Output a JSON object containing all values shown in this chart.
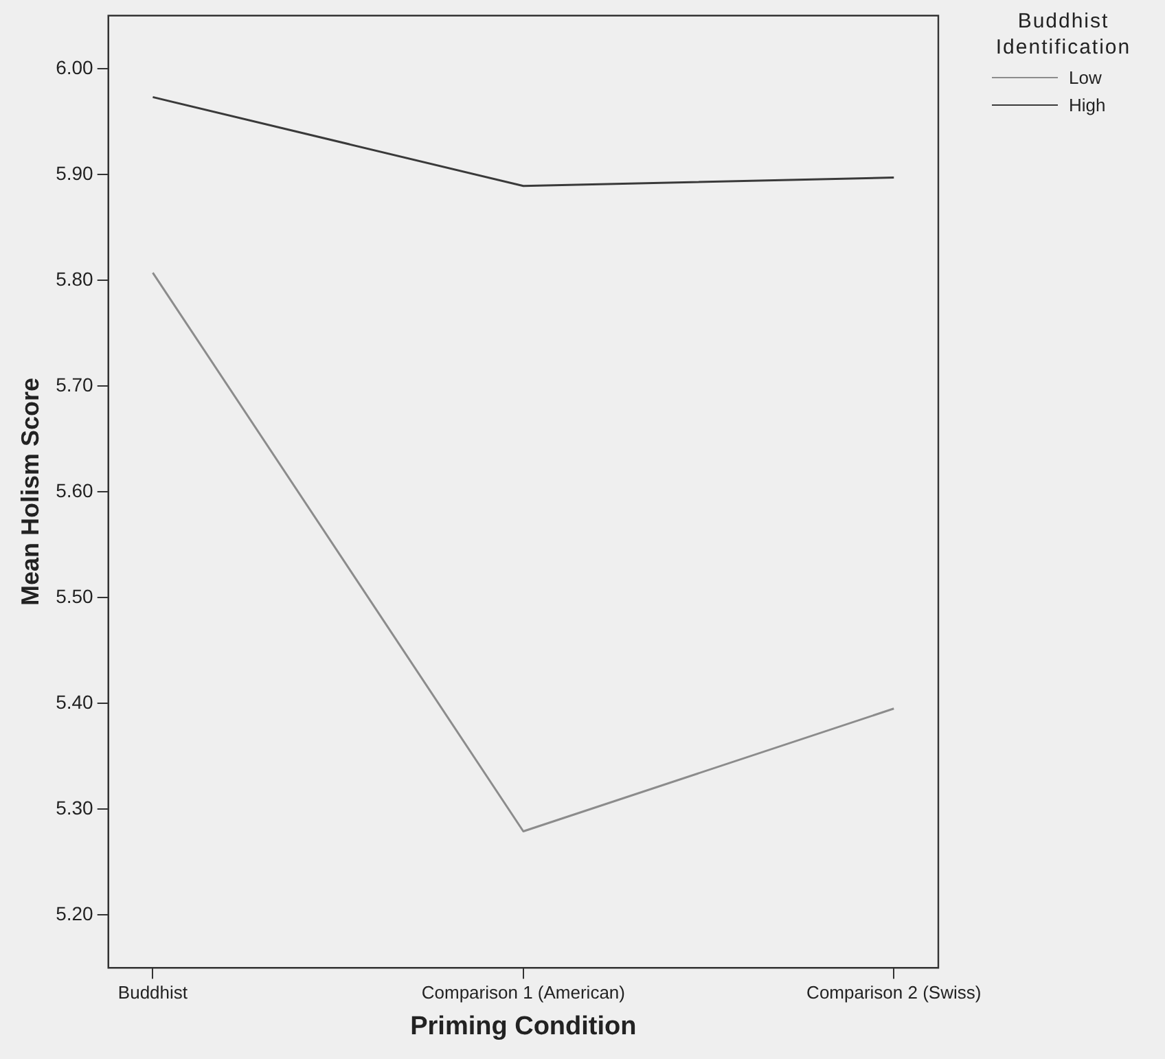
{
  "chart_data": {
    "type": "line",
    "xlabel": "Priming Condition",
    "ylabel": "Mean Holism Score",
    "legend_title": "Buddhist Identification",
    "categories": [
      "Buddhist",
      "Comparison 1 (American)",
      "Comparison 2 (Swiss)"
    ],
    "series": [
      {
        "name": "Low",
        "color": "#8c8c8c",
        "values": [
          5.807,
          5.279,
          5.395
        ]
      },
      {
        "name": "High",
        "color": "#3a3a3a",
        "values": [
          5.973,
          5.889,
          5.897
        ]
      }
    ],
    "ylim": [
      5.15,
      6.05
    ],
    "yticks": [
      {
        "value": 5.2,
        "label": "5.20"
      },
      {
        "value": 5.3,
        "label": "5.30"
      },
      {
        "value": 5.4,
        "label": "5.40"
      },
      {
        "value": 5.5,
        "label": "5.50"
      },
      {
        "value": 5.6,
        "label": "5.60"
      },
      {
        "value": 5.7,
        "label": "5.70"
      },
      {
        "value": 5.8,
        "label": "5.80"
      },
      {
        "value": 5.9,
        "label": "5.90"
      },
      {
        "value": 6,
        "label": "6.00"
      }
    ],
    "grid": false,
    "legend": "right",
    "marker": "none",
    "line_style": "solid"
  }
}
